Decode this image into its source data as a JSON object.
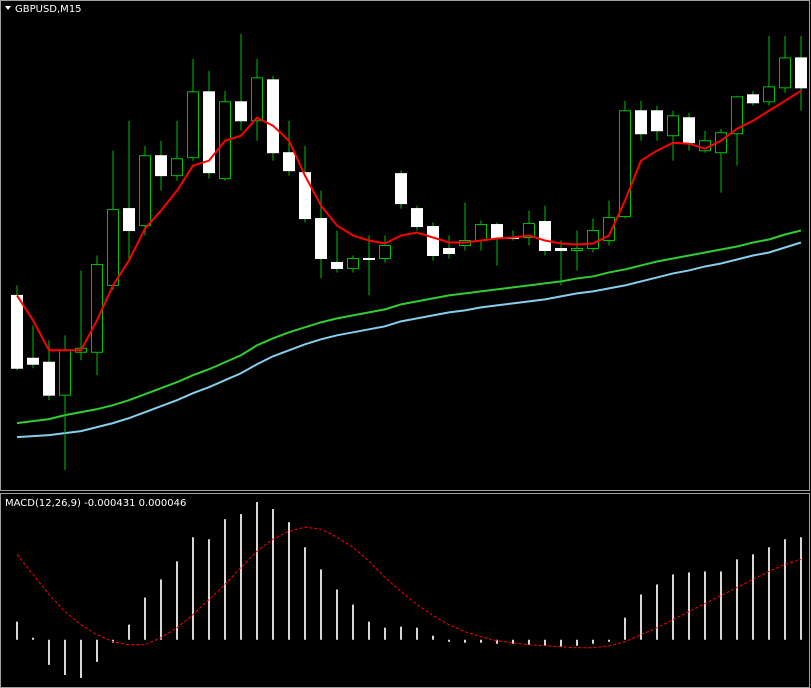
{
  "chart_data": [
    {
      "type": "candlestick",
      "title": "GBPUSD,M15",
      "ylim": [
        0,
        490
      ],
      "candles": {
        "wick_color": "#00c000",
        "up_color": "#000000",
        "up_outline": "#00c000",
        "down_color": "#ffffff",
        "open": [
          195,
          132,
          128,
          95,
          138,
          138,
          205,
          282,
          265,
          335,
          315,
          333,
          399,
          312,
          389,
          370,
          411,
          338,
          318,
          272,
          228,
          222,
          232,
          232,
          317,
          282,
          264,
          242,
          245,
          250,
          266,
          253,
          253,
          269,
          242,
          240,
          242,
          250,
          274,
          380,
          380,
          355,
          373,
          340,
          338,
          357,
          396,
          389,
          403,
          433
        ],
        "high": [
          205,
          165,
          150,
          155,
          220,
          235,
          340,
          370,
          345,
          350,
          370,
          432,
          420,
          400,
          457,
          432,
          415,
          370,
          345,
          300,
          260,
          235,
          255,
          255,
          320,
          285,
          268,
          255,
          288,
          270,
          268,
          260,
          280,
          285,
          250,
          260,
          272,
          290,
          390,
          390,
          385,
          380,
          378,
          360,
          362,
          395,
          400,
          455,
          455,
          455
        ],
        "low": [
          120,
          122,
          90,
          20,
          130,
          115,
          200,
          230,
          255,
          300,
          310,
          330,
          312,
          310,
          360,
          350,
          330,
          315,
          268,
          212,
          218,
          218,
          195,
          228,
          282,
          260,
          230,
          232,
          240,
          240,
          225,
          250,
          245,
          235,
          205,
          220,
          238,
          245,
          272,
          350,
          350,
          330,
          340,
          338,
          298,
          325,
          385,
          385,
          398,
          380
        ],
        "close": [
          122,
          126,
          95,
          140,
          142,
          226,
          281,
          260,
          335,
          315,
          332,
          399,
          318,
          389,
          370,
          413,
          338,
          320,
          272,
          232,
          222,
          232,
          231,
          245,
          287,
          264,
          235,
          237,
          250,
          266,
          252,
          252,
          267,
          240,
          240,
          242,
          260,
          273,
          380,
          357,
          360,
          375,
          348,
          350,
          358,
          394,
          388,
          404,
          433,
          403
        ]
      },
      "series": [
        {
          "color": "#ff0000",
          "values": [
            195,
            170,
            140,
            140,
            140,
            170,
            205,
            230,
            262,
            280,
            300,
            325,
            330,
            350,
            355,
            373,
            365,
            350,
            315,
            285,
            265,
            255,
            250,
            247,
            255,
            258,
            253,
            248,
            248,
            250,
            252,
            253,
            255,
            250,
            247,
            246,
            247,
            255,
            290,
            330,
            340,
            348,
            347,
            342,
            350,
            362,
            370,
            380,
            390,
            400
          ]
        },
        {
          "color": "#32cd32",
          "values": [
            67,
            69,
            71,
            75,
            78,
            81,
            85,
            90,
            96,
            102,
            108,
            115,
            121,
            128,
            135,
            145,
            152,
            158,
            163,
            168,
            172,
            175,
            178,
            181,
            186,
            189,
            192,
            195,
            197,
            199,
            201,
            203,
            205,
            207,
            209,
            212,
            214,
            218,
            221,
            225,
            229,
            232,
            235,
            238,
            241,
            244,
            248,
            251,
            256,
            260
          ]
        },
        {
          "color": "#87ceeb",
          "values": [
            53,
            54,
            55,
            57,
            59,
            63,
            67,
            72,
            78,
            84,
            90,
            97,
            103,
            110,
            117,
            126,
            134,
            140,
            146,
            151,
            155,
            158,
            161,
            164,
            169,
            172,
            175,
            178,
            180,
            183,
            185,
            187,
            189,
            191,
            194,
            197,
            199,
            202,
            205,
            209,
            213,
            217,
            220,
            224,
            227,
            231,
            235,
            238,
            243,
            248
          ]
        }
      ]
    },
    {
      "type": "bar",
      "title": "MACD(12,26,9) -0.000431 0.000046",
      "ylim": [
        -48,
        145
      ],
      "color": "#d8d8d8",
      "values": [
        18,
        2,
        -25,
        -35,
        -38,
        -22,
        -3,
        15,
        42,
        60,
        78,
        102,
        100,
        120,
        125,
        137,
        130,
        117,
        92,
        70,
        50,
        35,
        18,
        12,
        13,
        12,
        4,
        -2,
        -3,
        -3,
        -4,
        -4,
        -5,
        -6,
        -7,
        -6,
        -4,
        -2,
        22,
        45,
        55,
        65,
        67,
        68,
        68,
        80,
        85,
        92,
        100,
        102
      ],
      "series": [
        {
          "color": "#ff0000",
          "dashed": true,
          "values": [
            85,
            65,
            45,
            28,
            15,
            5,
            -2,
            -5,
            -5,
            2,
            12,
            25,
            40,
            55,
            72,
            88,
            100,
            108,
            112,
            110,
            102,
            92,
            78,
            62,
            48,
            35,
            24,
            15,
            8,
            3,
            -1,
            -3,
            -5,
            -6,
            -7,
            -8,
            -8,
            -6,
            -2,
            5,
            12,
            20,
            28,
            36,
            44,
            52,
            60,
            68,
            75,
            80
          ]
        }
      ]
    }
  ]
}
